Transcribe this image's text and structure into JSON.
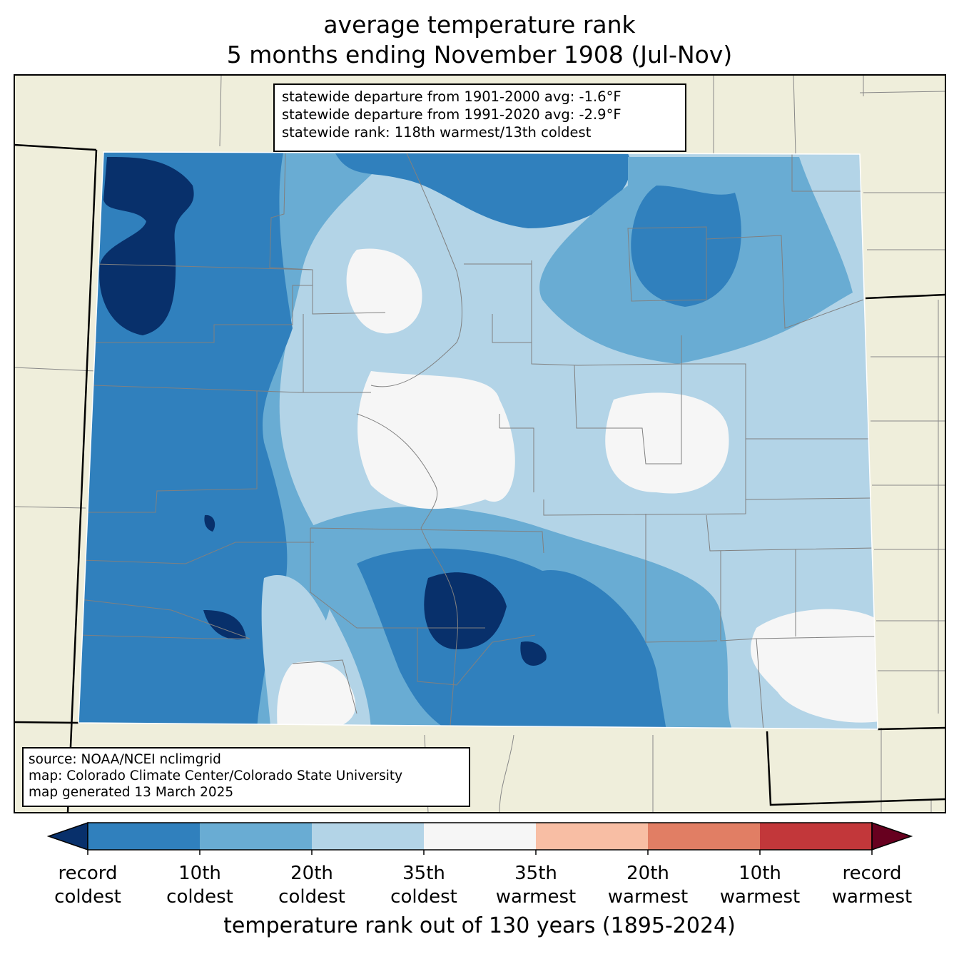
{
  "title": {
    "line1": "average temperature rank",
    "line2": "5 months ending November 1908 (Jul-Nov)"
  },
  "stats": {
    "line1": "statewide departure from 1901-2000 avg: -1.6°F",
    "line2": "statewide departure from 1991-2020 avg: -2.9°F",
    "line3": "statewide rank: 118th warmest/13th coldest"
  },
  "source": {
    "line1": "source: NOAA/NCEI nclimgrid",
    "line2": "map: Colorado Climate Center/Colorado State University",
    "line3": "map generated 13 March 2025"
  },
  "colorbar": {
    "title": "temperature rank out of 130 years (1895-2024)",
    "ticks": [
      {
        "l1": "record",
        "l2": "coldest"
      },
      {
        "l1": "10th",
        "l2": "coldest"
      },
      {
        "l1": "20th",
        "l2": "coldest"
      },
      {
        "l1": "35th",
        "l2": "coldest"
      },
      {
        "l1": "35th",
        "l2": "warmest"
      },
      {
        "l1": "20th",
        "l2": "warmest"
      },
      {
        "l1": "10th",
        "l2": "warmest"
      },
      {
        "l1": "record",
        "l2": "warmest"
      }
    ],
    "colors": [
      "#08306b",
      "#3080bd",
      "#69acd3",
      "#b3d4e7",
      "#f6f6f6",
      "#f8bea4",
      "#e17e64",
      "#c2373a",
      "#67001f"
    ]
  },
  "map_colors": {
    "land": "#efeedb",
    "county_lines": "#808080"
  }
}
